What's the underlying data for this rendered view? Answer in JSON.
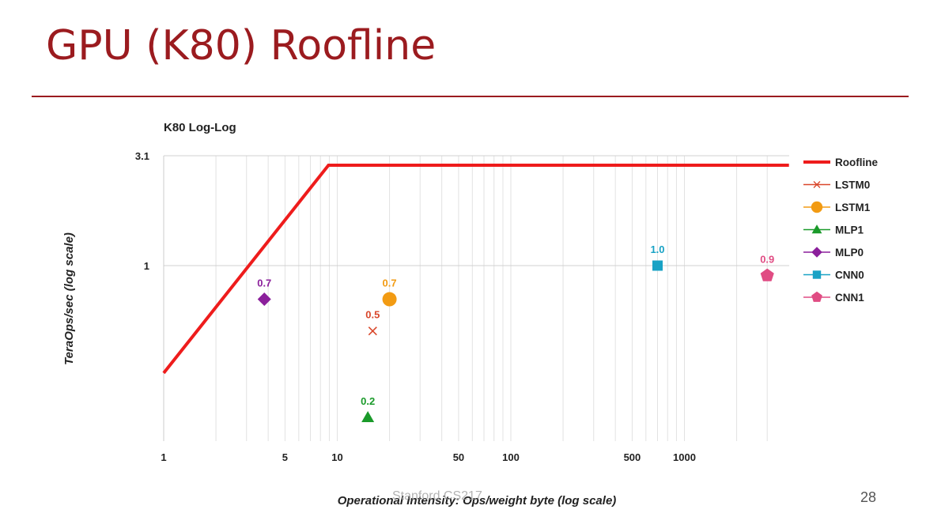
{
  "slide": {
    "title": "GPU (K80) Roofline",
    "watermark": "Stanford CS217",
    "page_number": "28"
  },
  "colors": {
    "title": "#9b1b1f",
    "roofline": "#ee1c1c",
    "LSTM0": "#d9472b",
    "LSTM1": "#f29b13",
    "MLP1": "#1a9a2a",
    "MLP0": "#8b1f9b",
    "CNN0": "#18a2c5",
    "CNN1": "#e04c83"
  },
  "chart_data": {
    "type": "scatter",
    "title": "K80 Log-Log",
    "xlabel": "Operational Intensity: Ops/weight byte (log scale)",
    "ylabel": "TeraOps/sec (log scale)",
    "x_scale": "log",
    "y_scale": "log",
    "xlim": [
      1,
      4000
    ],
    "ylim": [
      0.2,
      3.1
    ],
    "x_ticks": [
      1,
      5,
      10,
      50,
      100,
      500,
      1000
    ],
    "x_tick_labels": [
      "1",
      "5",
      "10",
      "50",
      "100",
      "500",
      "1000"
    ],
    "y_ticks": [
      1,
      3.1
    ],
    "y_tick_labels": [
      "1",
      "3.1"
    ],
    "grid": "vertical gridlines at log decade subdivisions; horizontal gridlines at y ticks",
    "legend_position": "right",
    "series": [
      {
        "name": "Roofline",
        "kind": "line",
        "x": [
          1,
          8.9,
          4000
        ],
        "y": [
          0.32,
          2.9,
          2.9
        ]
      },
      {
        "name": "LSTM0",
        "kind": "point",
        "marker": "x",
        "x": 16,
        "y": 0.5,
        "label": "0.5"
      },
      {
        "name": "LSTM1",
        "kind": "point",
        "marker": "circle",
        "x": 20,
        "y": 0.7,
        "label": "0.7"
      },
      {
        "name": "MLP1",
        "kind": "point",
        "marker": "triangle",
        "x": 15,
        "y": 0.2,
        "label": "0.2"
      },
      {
        "name": "MLP0",
        "kind": "point",
        "marker": "diamond",
        "x": 3.8,
        "y": 0.7,
        "label": "0.7"
      },
      {
        "name": "CNN0",
        "kind": "point",
        "marker": "square",
        "x": 700,
        "y": 1.0,
        "label": "1.0"
      },
      {
        "name": "CNN1",
        "kind": "point",
        "marker": "pentagon",
        "x": 3000,
        "y": 0.9,
        "label": "0.9"
      }
    ]
  }
}
